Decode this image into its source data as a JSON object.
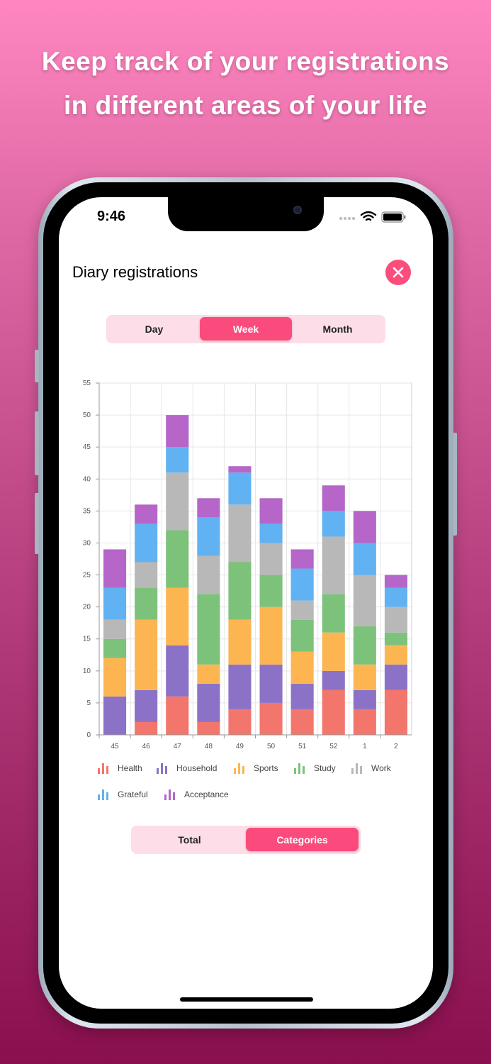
{
  "headline": [
    "Keep track of your registrations",
    "in different areas of your life"
  ],
  "status": {
    "time": "9:46"
  },
  "page": {
    "title": "Diary registrations"
  },
  "icons": {
    "close": "close-icon",
    "wifi": "wifi-icon",
    "battery": "battery-icon",
    "signal": "signal-icon"
  },
  "period_tabs": [
    {
      "label": "Day",
      "active": false
    },
    {
      "label": "Week",
      "active": true
    },
    {
      "label": "Month",
      "active": false
    }
  ],
  "view_tabs": [
    {
      "label": "Total",
      "active": false
    },
    {
      "label": "Categories",
      "active": true
    }
  ],
  "colors": {
    "accent": "#fb4a7c",
    "accent_light": "#fddde7",
    "Health": "#f2766b",
    "Household": "#8c72c6",
    "Sports": "#fdb552",
    "Study": "#7cc27a",
    "Work": "#b8b8b8",
    "Grateful": "#60b2f2",
    "Acceptance": "#b566c8"
  },
  "chart_data": {
    "type": "bar",
    "stacked": true,
    "categories": [
      "45",
      "46",
      "47",
      "48",
      "49",
      "50",
      "51",
      "52",
      "1",
      "2"
    ],
    "ylim": [
      0,
      55
    ],
    "yticks": [
      0,
      5,
      10,
      15,
      20,
      25,
      30,
      35,
      40,
      45,
      50,
      55
    ],
    "grid": true,
    "legend_position": "bottom",
    "series": [
      {
        "name": "Health",
        "values": [
          0,
          2,
          6,
          2,
          4,
          5,
          4,
          7,
          4,
          7
        ]
      },
      {
        "name": "Household",
        "values": [
          6,
          5,
          8,
          6,
          7,
          6,
          4,
          3,
          3,
          4
        ]
      },
      {
        "name": "Sports",
        "values": [
          6,
          11,
          9,
          3,
          7,
          9,
          5,
          6,
          4,
          3
        ]
      },
      {
        "name": "Study",
        "values": [
          3,
          5,
          9,
          11,
          9,
          5,
          5,
          6,
          6,
          2
        ]
      },
      {
        "name": "Work",
        "values": [
          3,
          4,
          9,
          6,
          9,
          5,
          3,
          9,
          8,
          4
        ]
      },
      {
        "name": "Grateful",
        "values": [
          5,
          6,
          4,
          6,
          5,
          3,
          5,
          4,
          5,
          3
        ]
      },
      {
        "name": "Acceptance",
        "values": [
          6,
          3,
          5,
          3,
          1,
          4,
          3,
          4,
          5,
          2
        ]
      }
    ]
  }
}
